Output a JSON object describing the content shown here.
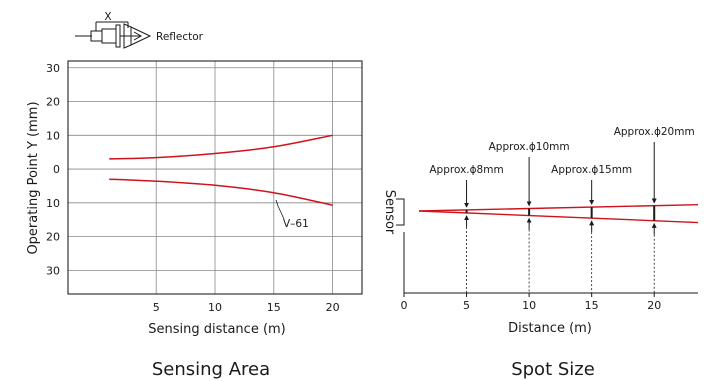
{
  "chart_data": [
    {
      "type": "line",
      "title": "Sensing Area",
      "xlabel": "Sensing distance (m)",
      "ylabel": "Operating Point Y (mm)",
      "xlim": [
        -2.5,
        22.5
      ],
      "ylim": [
        -37,
        32
      ],
      "x_ticks": [
        5,
        10,
        15,
        20
      ],
      "x_tick_labels": [
        "5",
        "10",
        "15",
        "20"
      ],
      "y_ticks": [
        30,
        20,
        10,
        0,
        -10,
        -20,
        -30
      ],
      "y_tick_labels": [
        "30",
        "20",
        "10",
        "0",
        "10",
        "20",
        "30"
      ],
      "grid": true,
      "series": [
        {
          "name": "V-61",
          "color": "#d0121b",
          "upper": [
            [
              1,
              3
            ],
            [
              5,
              3.4
            ],
            [
              10,
              4.6
            ],
            [
              15,
              6.6
            ],
            [
              20,
              10
            ]
          ],
          "lower": [
            [
              1,
              -3
            ],
            [
              5,
              -3.6
            ],
            [
              10,
              -4.8
            ],
            [
              15,
              -7
            ],
            [
              20,
              -10.7
            ]
          ]
        }
      ],
      "series_label": "V–61",
      "inset_diagram": {
        "distance_label": "X",
        "target_label": "Reflector"
      }
    },
    {
      "type": "line",
      "title": "Spot Size",
      "xlabel": "Distance (m)",
      "ylabel": "Sensor",
      "xlim": [
        0,
        23.5
      ],
      "x_ticks": [
        0,
        5,
        10,
        15,
        20
      ],
      "x_tick_labels": [
        "0",
        "5",
        "10",
        "15",
        "20"
      ],
      "beam": {
        "color": "#d0121b",
        "origin": [
          1.2,
          0
        ],
        "upper_end": [
          23.5,
          0.6
        ],
        "lower_end": [
          23.5,
          -1.1
        ]
      },
      "spots": [
        {
          "x": 5,
          "label": "Approx.ϕ8mm"
        },
        {
          "x": 10,
          "label": "Approx.ϕ10mm"
        },
        {
          "x": 15,
          "label": "Approx.ϕ15mm"
        },
        {
          "x": 20,
          "label": "Approx.ϕ20mm"
        }
      ]
    }
  ]
}
